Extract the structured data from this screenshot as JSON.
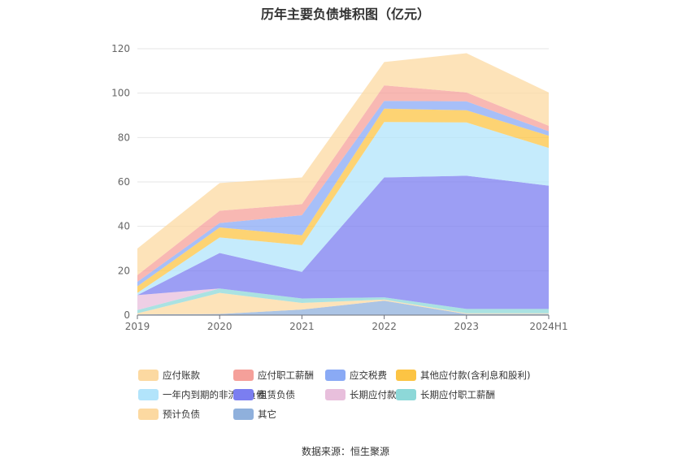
{
  "chart_data": {
    "type": "area",
    "stacked": true,
    "title": "历年主要负债堆积图（亿元）",
    "categories": [
      "2019",
      "2020",
      "2021",
      "2022",
      "2023",
      "2024H1"
    ],
    "ylim": [
      0,
      120
    ],
    "yticks": [
      0,
      20,
      40,
      60,
      80,
      100,
      120
    ],
    "xlabel": "",
    "ylabel": "",
    "legend_position": "bottom",
    "series": [
      {
        "name": "其它",
        "color": "#8fb0dc",
        "values": [
          0.3,
          0.5,
          2.5,
          6.5,
          0.5,
          0.5
        ]
      },
      {
        "name": "预计负债",
        "color": "#fcd9a1",
        "values": [
          0.5,
          9.5,
          3.0,
          0.5,
          0.3,
          0.3
        ]
      },
      {
        "name": "长期应付职工薪酬",
        "color": "#8dd8d8",
        "values": [
          1.5,
          2.0,
          2.0,
          1.0,
          2.0,
          2.0
        ]
      },
      {
        "name": "长期应付款合计",
        "color": "#e8bfdc",
        "values": [
          6.7,
          0.0,
          0.0,
          0.0,
          0.0,
          0.0
        ]
      },
      {
        "name": "租赁负债",
        "color": "#7b7ef0",
        "values": [
          0.0,
          16.0,
          12.0,
          54.0,
          60.0,
          55.5
        ]
      },
      {
        "name": "一年内到期的非流动负债",
        "color": "#b2e4fb",
        "values": [
          1.0,
          7.0,
          12.0,
          25.0,
          24.0,
          17.0
        ]
      },
      {
        "name": "其他应付款(含利息和股利)",
        "color": "#fcc444",
        "values": [
          3.0,
          4.5,
          4.5,
          6.0,
          5.5,
          5.5
        ]
      },
      {
        "name": "应交税费",
        "color": "#8aaaf5",
        "values": [
          2.0,
          2.0,
          9.0,
          3.5,
          4.0,
          2.0
        ]
      },
      {
        "name": "应付职工薪酬",
        "color": "#f5a09a",
        "values": [
          3.0,
          5.5,
          5.0,
          7.0,
          4.0,
          2.5
        ]
      },
      {
        "name": "应付账款",
        "color": "#fcd9a1",
        "values": [
          12.0,
          12.5,
          12.0,
          10.5,
          17.7,
          15.0
        ]
      }
    ]
  },
  "legend": {
    "rows": [
      [
        {
          "label": "应付账款",
          "color": "#fcd9a1"
        },
        {
          "label": "应付职工薪酬",
          "color": "#f5a09a"
        },
        {
          "label": "应交税费",
          "color": "#8aaaf5"
        },
        {
          "label": "其他应付款(含利息和股利)",
          "color": "#fcc444"
        }
      ],
      [
        {
          "label": "一年内到期的非流动负债",
          "color": "#b2e4fb"
        },
        {
          "label": "租赁负债",
          "color": "#7b7ef0"
        },
        {
          "label": "长期应付款合计",
          "color": "#e8bfdc"
        },
        {
          "label": "长期应付职工薪酬",
          "color": "#8dd8d8"
        }
      ],
      [
        {
          "label": "预计负债",
          "color": "#fcd9a1"
        },
        {
          "label": "其它",
          "color": "#8fb0dc"
        }
      ]
    ]
  },
  "source_text": "数据来源：恒生聚源"
}
